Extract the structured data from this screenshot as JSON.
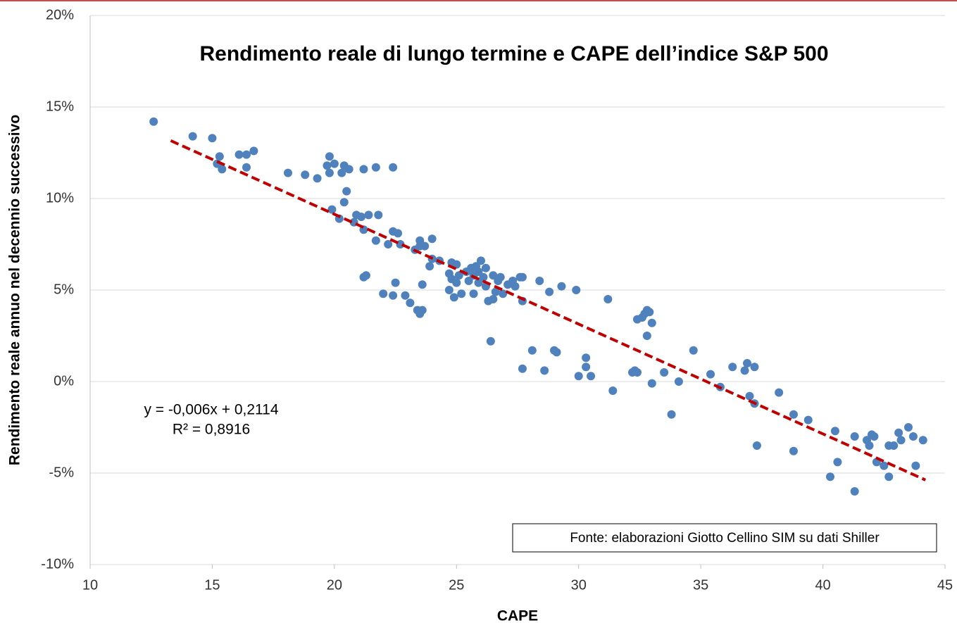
{
  "chart_data": {
    "type": "scatter",
    "title": "Rendimento reale di lungo termine e CAPE dell’indice S&P 500",
    "xlabel": "CAPE",
    "ylabel": "Rendimento reale annuo nel decennio successivo",
    "annotations": [
      "y = -0,006x + 0,2114",
      "R² = 0,8916"
    ],
    "source": "Fonte: elaborazioni Giotto Cellino SIM su dati Shiller",
    "color": "#4f81bd",
    "x": [
      12.6,
      14.2,
      15.0,
      15.3,
      15.2,
      15.4,
      16.1,
      16.4,
      16.7,
      16.4,
      18.1,
      18.8,
      19.3,
      19.8,
      19.7,
      19.8,
      20.0,
      20.4,
      20.3,
      20.6,
      20.5,
      20.4,
      19.9,
      20.2,
      20.8,
      20.9,
      21.1,
      21.4,
      21.8,
      21.2,
      21.7,
      22.4,
      21.2,
      21.7,
      22.2,
      22.4,
      22.6,
      22.7,
      23.3,
      23.5,
      23.5,
      23.7,
      24.0,
      23.9,
      24.0,
      24.3,
      21.2,
      21.3,
      22.0,
      22.4,
      22.5,
      22.9,
      23.1,
      23.4,
      23.5,
      23.6,
      23.6,
      24.7,
      24.8,
      25.0,
      24.7,
      24.9,
      25.0,
      25.2,
      24.8,
      25.1,
      25.4,
      25.6,
      25.8,
      26.0,
      25.5,
      25.7,
      25.9,
      26.1,
      26.2,
      26.3,
      26.5,
      26.6,
      26.7,
      26.8,
      26.9,
      27.1,
      27.3,
      27.4,
      27.6,
      27.7,
      27.7,
      26.4,
      25.7,
      26.5,
      25.9,
      26.2,
      27.7,
      28.1,
      28.6,
      28.4,
      28.8,
      29.3,
      29.9,
      29.0,
      29.1,
      30.0,
      30.3,
      30.3,
      30.5,
      31.2,
      31.4,
      32.2,
      32.3,
      32.4,
      32.4,
      32.6,
      32.7,
      32.8,
      32.9,
      32.8,
      33.0,
      33.0,
      33.5,
      33.8,
      34.1,
      34.7,
      35.4,
      35.8,
      36.3,
      36.8,
      36.9,
      37.0,
      37.2,
      37.2,
      37.3,
      38.2,
      38.8,
      38.8,
      39.4,
      40.3,
      40.5,
      40.6,
      41.3,
      41.3,
      41.8,
      41.9,
      42.0,
      42.1,
      42.2,
      42.5,
      42.7,
      42.7,
      42.9,
      43.1,
      43.2,
      43.5,
      43.7,
      43.8,
      44.1
    ],
    "values": [
      14.2,
      13.4,
      13.3,
      12.3,
      11.9,
      11.6,
      12.4,
      12.4,
      12.6,
      11.7,
      11.4,
      11.3,
      11.1,
      12.3,
      11.8,
      11.4,
      11.9,
      11.8,
      11.4,
      11.6,
      10.4,
      9.8,
      9.4,
      8.9,
      8.7,
      9.1,
      9.0,
      9.1,
      9.1,
      11.6,
      11.7,
      11.7,
      8.3,
      7.7,
      7.5,
      8.2,
      8.1,
      7.5,
      7.2,
      7.7,
      7.4,
      7.4,
      7.8,
      6.3,
      6.7,
      6.6,
      5.7,
      5.8,
      4.8,
      4.7,
      5.4,
      4.7,
      4.3,
      3.9,
      3.7,
      3.9,
      5.3,
      5.9,
      6.5,
      6.4,
      5.0,
      4.6,
      5.4,
      4.8,
      5.6,
      5.8,
      6.0,
      6.2,
      6.3,
      6.6,
      5.5,
      5.8,
      5.4,
      5.7,
      5.2,
      4.4,
      5.8,
      4.9,
      5.5,
      5.7,
      4.8,
      5.3,
      5.5,
      5.2,
      5.7,
      4.4,
      5.7,
      2.2,
      4.8,
      4.5,
      6.0,
      6.2,
      0.7,
      1.7,
      0.6,
      5.5,
      4.9,
      5.2,
      5.0,
      1.7,
      1.6,
      0.3,
      1.3,
      0.8,
      0.3,
      4.5,
      -0.5,
      0.5,
      0.6,
      0.5,
      3.4,
      3.5,
      3.7,
      3.9,
      3.8,
      2.5,
      3.2,
      -0.1,
      0.5,
      -1.8,
      0.0,
      1.7,
      0.4,
      -0.3,
      0.8,
      0.6,
      1.0,
      -0.8,
      0.8,
      -1.2,
      -3.5,
      -0.6,
      -1.8,
      -3.8,
      -2.1,
      -5.2,
      -2.7,
      -4.4,
      -3.0,
      -6.0,
      -3.2,
      -3.5,
      -2.9,
      -3.0,
      -4.4,
      -4.6,
      -5.2,
      -3.5,
      -3.5,
      -2.8,
      -3.2,
      -2.5,
      -3.0,
      -4.6,
      -3.2
    ],
    "trendline": {
      "x": [
        13.3,
        44.2
      ],
      "values": [
        13.16,
        -5.38
      ],
      "color": "#c00000"
    },
    "xlim": [
      10,
      45
    ],
    "xticks": [
      10,
      15,
      20,
      25,
      30,
      35,
      40,
      45
    ],
    "ylim": [
      -10,
      20
    ],
    "yticks": [
      {
        "value": -10,
        "label": "-10%"
      },
      {
        "value": -5,
        "label": "-5%"
      },
      {
        "value": 0,
        "label": "0%"
      },
      {
        "value": 5,
        "label": "5%"
      },
      {
        "value": 10,
        "label": "10%"
      },
      {
        "value": 15,
        "label": "15%"
      },
      {
        "value": 20,
        "label": "20%"
      }
    ],
    "grid": true
  }
}
